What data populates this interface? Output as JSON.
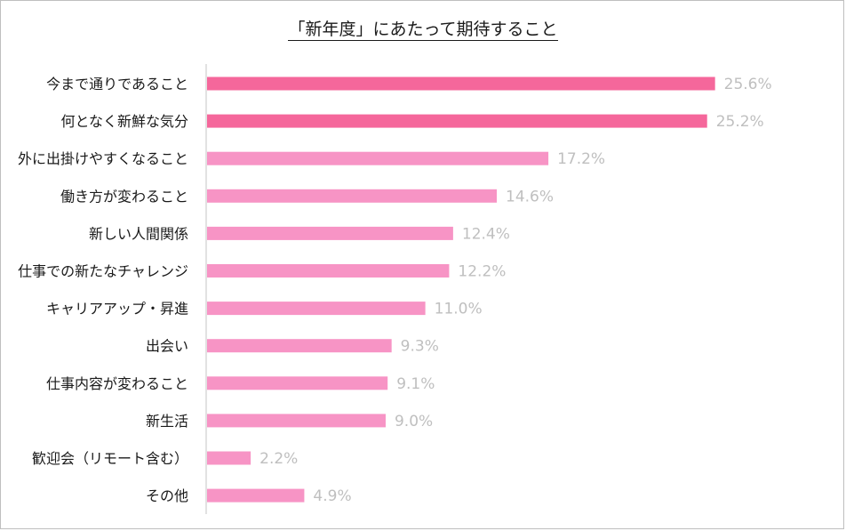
{
  "chart_data": {
    "type": "bar",
    "orientation": "horizontal",
    "title": "「新年度」にあたって期待すること",
    "categories": [
      "今まで通りであること",
      "何となく新鮮な気分",
      "外に出掛けやすくなること",
      "働き方が変わること",
      "新しい人間関係",
      "仕事での新たなチャレンジ",
      "キャリアアップ・昇進",
      "出会い",
      "仕事内容が変わること",
      "新生活",
      "歓迎会（リモート含む）",
      "その他"
    ],
    "values": [
      25.6,
      25.2,
      17.2,
      14.6,
      12.4,
      12.2,
      11.0,
      9.3,
      9.1,
      9.0,
      2.2,
      4.9
    ],
    "value_labels": [
      "25.6%",
      "25.2%",
      "17.2%",
      "14.6%",
      "12.4%",
      "12.2%",
      "11.0%",
      "9.3%",
      "9.1%",
      "9.0%",
      "2.2%",
      "4.9%"
    ],
    "xlim": [
      0,
      26
    ],
    "grid": false,
    "colors": {
      "highlight": "#f5679b",
      "bar": "#f794c5",
      "value_label": "#bfbfbf",
      "axis": "#d9d9d9"
    },
    "highlight_count": 2
  }
}
